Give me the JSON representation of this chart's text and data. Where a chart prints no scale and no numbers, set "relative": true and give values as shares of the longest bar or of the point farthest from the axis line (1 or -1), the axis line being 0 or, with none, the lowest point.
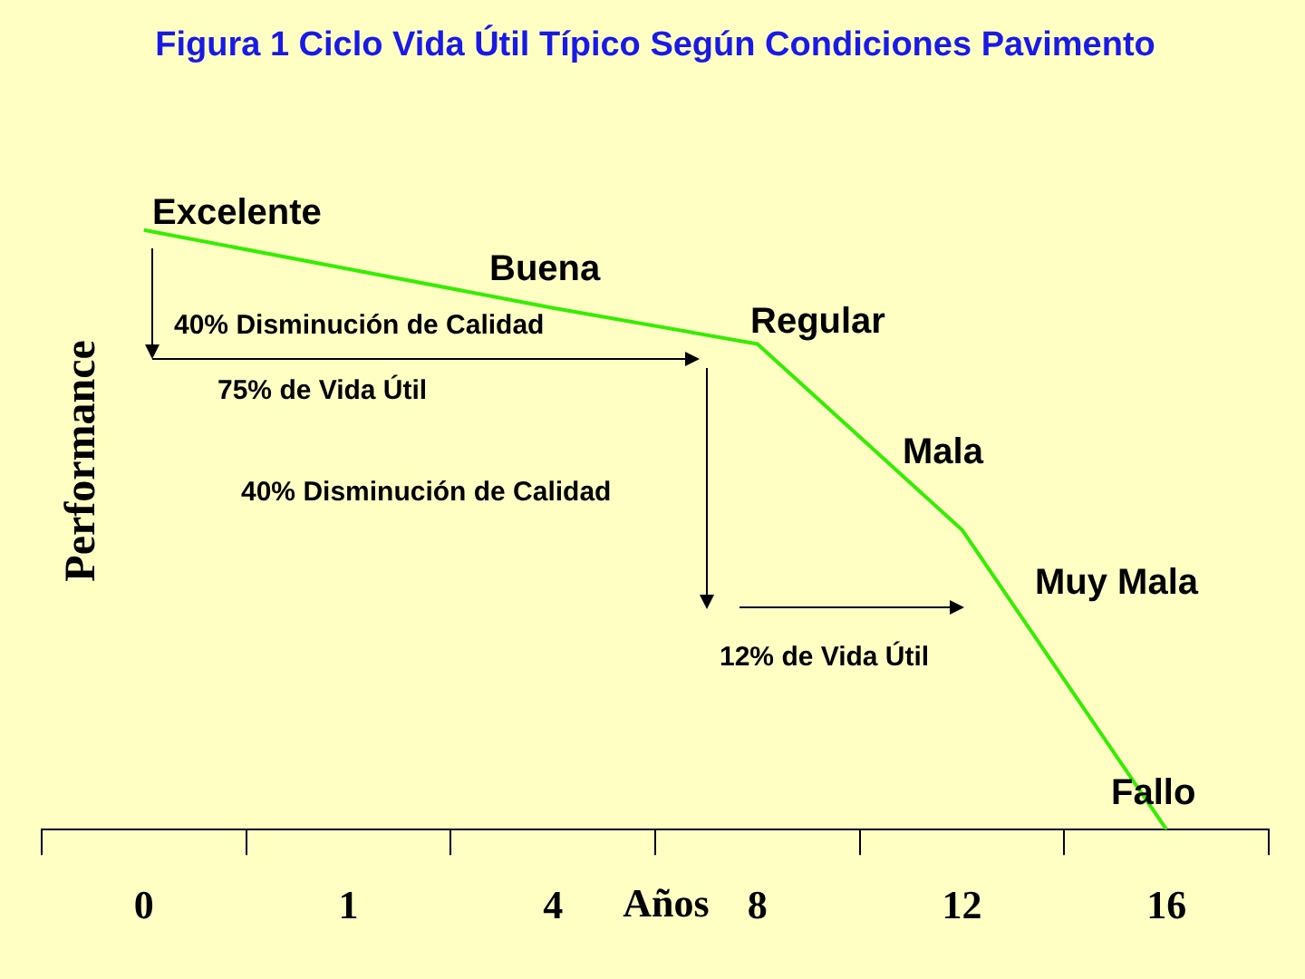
{
  "chart_data": {
    "type": "line",
    "title": "Figura 1 Ciclo Vida Útil Típico Según Condiciones Pavimento",
    "xlabel": "Años",
    "ylabel": "Performance",
    "categories": [
      "0",
      "1",
      "4",
      "8",
      "12",
      "16"
    ],
    "relative": true,
    "series": [
      {
        "color": "#33ee00",
        "values": [
          1,
          0.935,
          0.87,
          0.81,
          0.5,
          0
        ]
      }
    ],
    "marker": "none",
    "grid": false,
    "legend": false,
    "annotations": [
      "Excelente",
      "Buena",
      "Regular",
      "Mala",
      "Muy Mala",
      "Fallo",
      "40% Disminución de Calidad",
      "75% de Vida Útil",
      "40% Disminución de Calidad",
      "12% de Vida Útil"
    ]
  }
}
